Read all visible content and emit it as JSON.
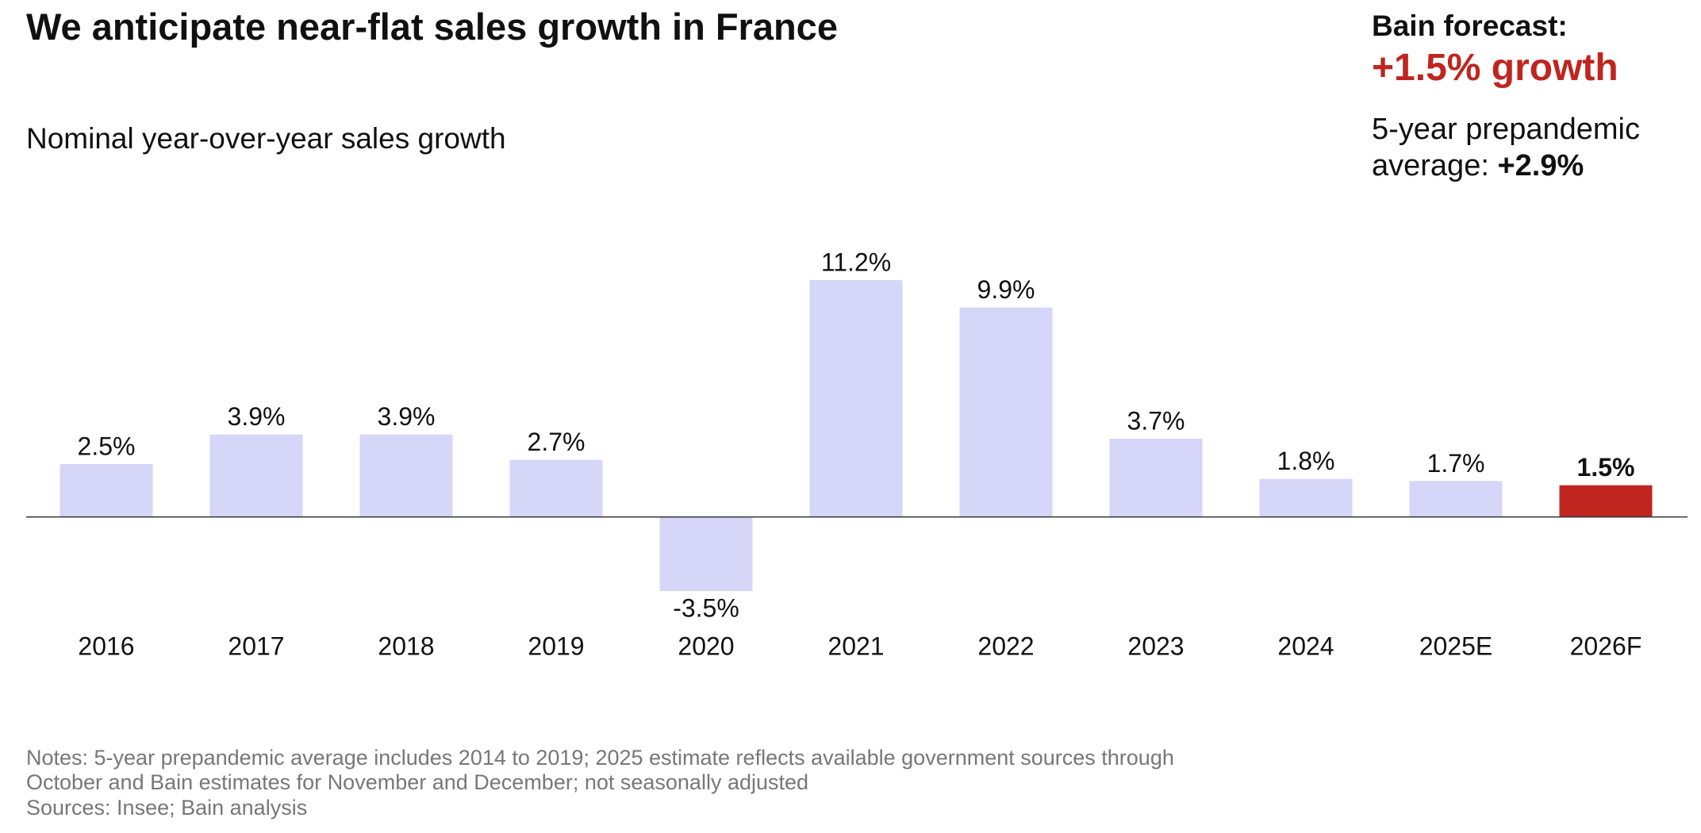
{
  "chart_data": {
    "type": "bar",
    "title": "We anticipate near-flat sales growth in France",
    "subtitle": "Nominal year-over-year sales growth",
    "callout": {
      "heading": "Bain forecast:",
      "forecast": "+1.5% growth",
      "average_label": "5-year prepandemic average:",
      "average_value": "+2.9%"
    },
    "categories": [
      "2016",
      "2017",
      "2018",
      "2019",
      "2020",
      "2021",
      "2022",
      "2023",
      "2024",
      "2025E",
      "2026F"
    ],
    "values": [
      2.5,
      3.9,
      3.9,
      2.7,
      -3.5,
      11.2,
      9.9,
      3.7,
      1.8,
      1.7,
      1.5
    ],
    "value_labels": [
      "2.5%",
      "3.9%",
      "3.9%",
      "2.7%",
      "-3.5%",
      "11.2%",
      "9.9%",
      "3.7%",
      "1.8%",
      "1.7%",
      "1.5%"
    ],
    "colors": [
      "#d6d6f8",
      "#d6d6f8",
      "#d6d6f8",
      "#d6d6f8",
      "#d6d6f8",
      "#d6d6f8",
      "#d6d6f8",
      "#d6d6f8",
      "#d6d6f8",
      "#d6d6f8",
      "#c0251f"
    ],
    "notes": [
      "Notes: 5-year prepandemic average includes 2014 to 2019; 2025 estimate reflects available government sources through",
      "October and Bain estimates for November and December; not seasonally adjusted"
    ],
    "sources": "Sources: Insee; Bain analysis"
  }
}
